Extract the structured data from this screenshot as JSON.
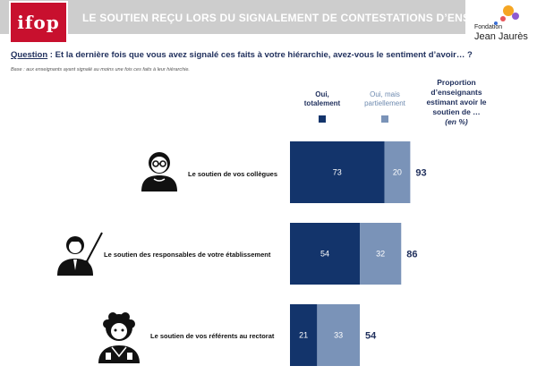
{
  "header": {
    "logo_left": "ifop",
    "title": "LE SOUTIEN REÇU LORS DU SIGNALEMENT DE CONTESTATIONS D’ENSEIGNEMENTS",
    "logo_right_line1": "Fondation",
    "logo_right_line2": "Jean Jaurès"
  },
  "question": {
    "label": "Question",
    "text": " : Et la dernière fois que vous avez signalé ces faits à votre hiérarchie, avez-vous le sentiment d’avoir… ?"
  },
  "base": "Base : aux enseignants ayant signalé au moins une fois ces faits à leur hiérarchie.",
  "legend": {
    "total_line1": "Oui,",
    "total_line2": "totalement",
    "partial_line1": "Oui, mais",
    "partial_line2": "partiellement"
  },
  "column_header": {
    "line1": "Proportion",
    "line2": "d’enseignants",
    "line3": "estimant avoir le",
    "line4": "soutien de …",
    "unit": "(en %)"
  },
  "colors": {
    "total": "#13346b",
    "partial": "#7a93b8",
    "header_red": "#c8102e",
    "header_grey": "#cdcdcd"
  },
  "chart_data": {
    "type": "bar",
    "orientation": "horizontal",
    "stacked": true,
    "categories": [
      "Le soutien de vos collègues",
      "Le soutien des responsables de votre établissement",
      "Le soutien de vos référents au rectorat"
    ],
    "series": [
      {
        "name": "Oui, totalement",
        "values": [
          73,
          54,
          21
        ]
      },
      {
        "name": "Oui, mais partiellement",
        "values": [
          20,
          32,
          33
        ]
      }
    ],
    "totals": [
      93,
      86,
      54
    ],
    "icons": [
      "teacher-glasses-icon",
      "teacher-pointer-icon",
      "teacher-curly-icon"
    ],
    "legend_position": "top",
    "grid": false
  }
}
